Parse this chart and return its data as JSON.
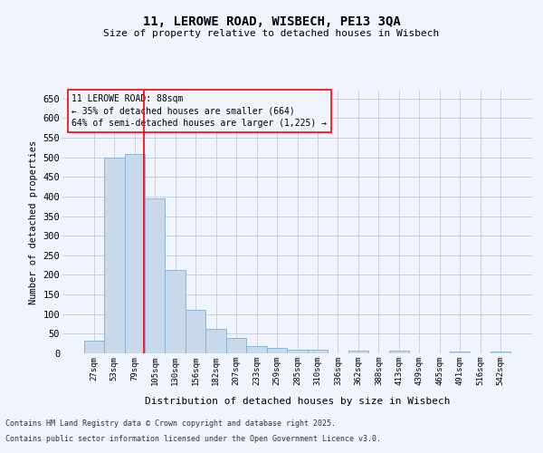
{
  "title": "11, LEROWE ROAD, WISBECH, PE13 3QA",
  "subtitle": "Size of property relative to detached houses in Wisbech",
  "xlabel": "Distribution of detached houses by size in Wisbech",
  "ylabel": "Number of detached properties",
  "categories": [
    "27sqm",
    "53sqm",
    "79sqm",
    "105sqm",
    "130sqm",
    "156sqm",
    "182sqm",
    "207sqm",
    "233sqm",
    "259sqm",
    "285sqm",
    "310sqm",
    "336sqm",
    "362sqm",
    "388sqm",
    "413sqm",
    "439sqm",
    "465sqm",
    "491sqm",
    "516sqm",
    "542sqm"
  ],
  "values": [
    33,
    499,
    508,
    396,
    212,
    110,
    62,
    39,
    18,
    14,
    10,
    9,
    0,
    8,
    0,
    7,
    0,
    0,
    4,
    0,
    5
  ],
  "bar_color": "#c9d9ec",
  "bar_edge_color": "#7fb0d5",
  "grid_color": "#c8d0e0",
  "background_color": "#f0f4ff",
  "vline_x": 2.45,
  "vline_color": "red",
  "annotation_text": "11 LEROWE ROAD: 88sqm\n← 35% of detached houses are smaller (664)\n64% of semi-detached houses are larger (1,225) →",
  "annotation_box_color": "red",
  "footer_line1": "Contains HM Land Registry data © Crown copyright and database right 2025.",
  "footer_line2": "Contains public sector information licensed under the Open Government Licence v3.0.",
  "ylim": [
    0,
    670
  ],
  "yticks": [
    0,
    50,
    100,
    150,
    200,
    250,
    300,
    350,
    400,
    450,
    500,
    550,
    600,
    650
  ]
}
